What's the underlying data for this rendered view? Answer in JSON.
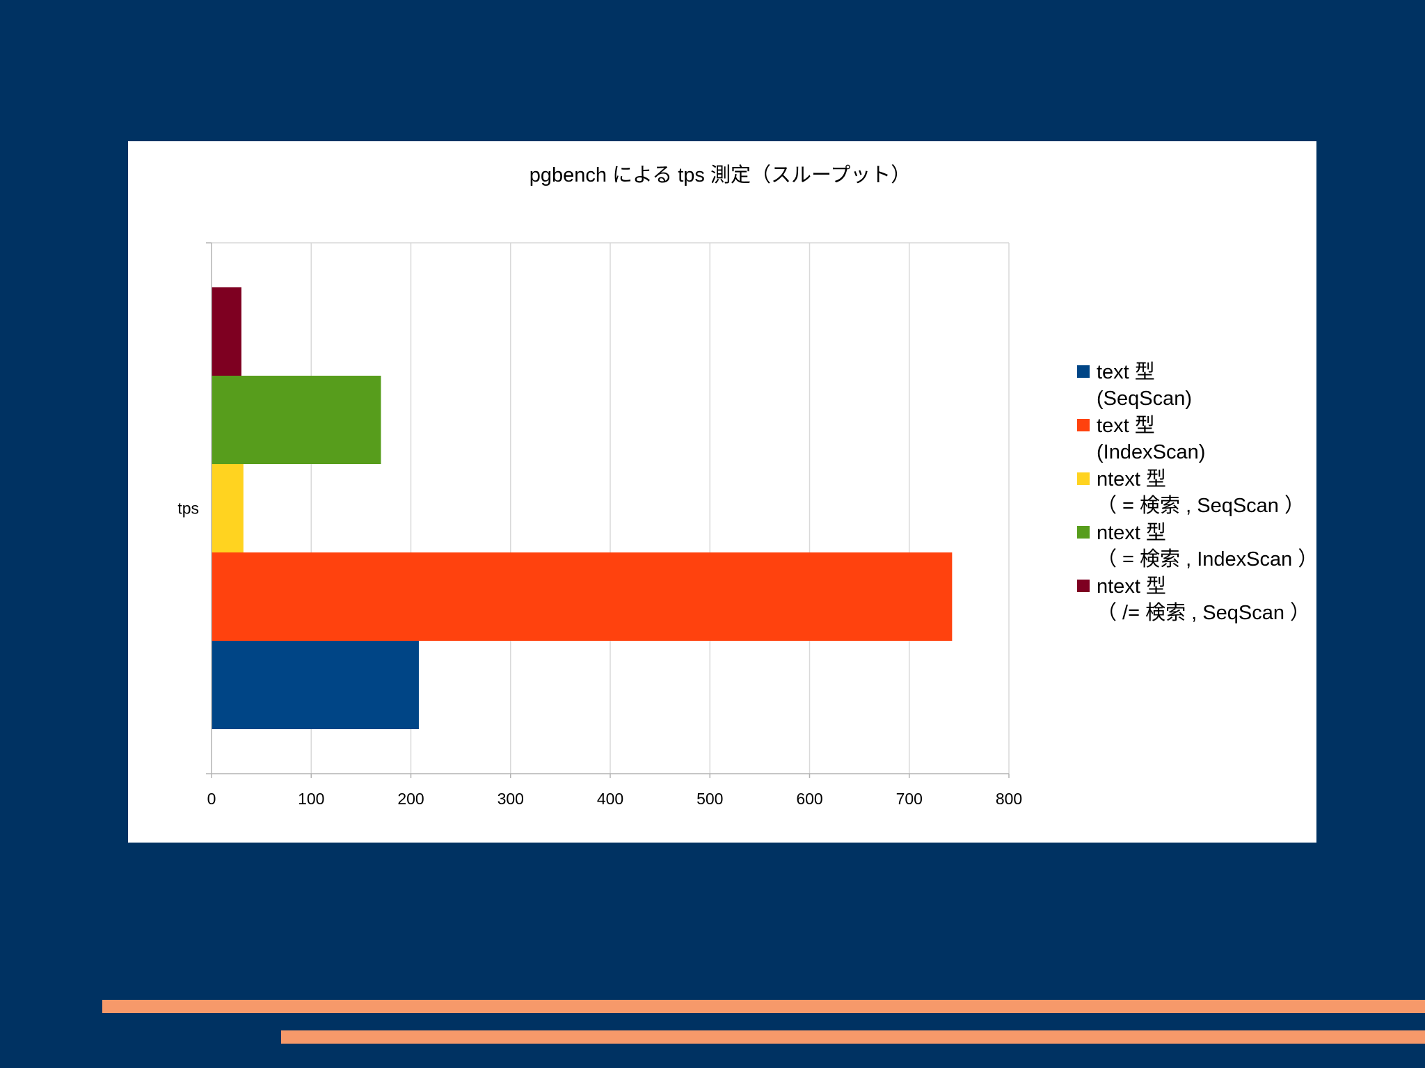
{
  "chart_data": {
    "type": "bar",
    "orientation": "horizontal",
    "title": "pgbench による tps 測定（スループット）",
    "categories": [
      "tps"
    ],
    "xlim": [
      0,
      800
    ],
    "xticks": [
      0,
      100,
      200,
      300,
      400,
      500,
      600,
      700,
      800
    ],
    "grid": true,
    "legend_position": "right",
    "series": [
      {
        "name": "text 型 (SeqScan)",
        "legend_lines": [
          "text 型",
          "(SeqScan)"
        ],
        "values": [
          208
        ],
        "color": "#004586"
      },
      {
        "name": "text 型 (IndexScan)",
        "legend_lines": [
          "text 型",
          "(IndexScan)"
        ],
        "values": [
          743
        ],
        "color": "#ff420e"
      },
      {
        "name": "ntext 型 （ = 検索 , SeqScan ）",
        "legend_lines": [
          "ntext 型",
          "（ = 検索 , SeqScan ）"
        ],
        "values": [
          32
        ],
        "color": "#ffd320"
      },
      {
        "name": "ntext 型 （ = 検索 , IndexScan ）",
        "legend_lines": [
          "ntext 型",
          "（ = 検索 , IndexScan ）"
        ],
        "values": [
          170
        ],
        "color": "#579d1c"
      },
      {
        "name": "ntext 型 （ /= 検索 , SeqScan ）",
        "legend_lines": [
          "ntext 型",
          "（ /= 検索 , SeqScan ）"
        ],
        "values": [
          30
        ],
        "color": "#7e0021"
      }
    ]
  }
}
